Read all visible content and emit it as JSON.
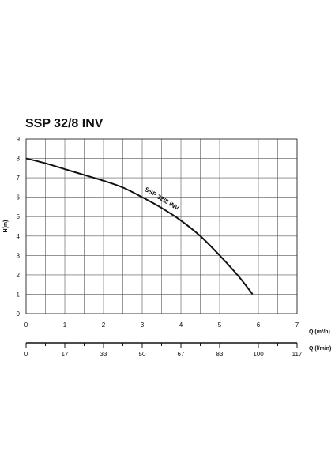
{
  "chart_data": {
    "type": "line",
    "title": "SSP 32/8 INV",
    "ylabel": "H(m)",
    "xlabel": "Q (m³/h)",
    "x2label": "Q (l/min)",
    "xlim": [
      0,
      7
    ],
    "ylim": [
      0,
      9
    ],
    "x_ticks": [
      "0",
      "1",
      "2",
      "3",
      "4",
      "5",
      "6",
      "7"
    ],
    "y_ticks": [
      "0",
      "1",
      "2",
      "3",
      "4",
      "5",
      "6",
      "7",
      "8",
      "9"
    ],
    "x2_ticks": [
      "0",
      "17",
      "33",
      "50",
      "67",
      "83",
      "100",
      "117"
    ],
    "grid": true,
    "series": [
      {
        "name": "SSP 32/8  INV",
        "x": [
          0,
          0.5,
          1,
          1.5,
          2,
          2.5,
          3,
          3.5,
          4,
          4.5,
          5,
          5.5,
          5.85
        ],
        "y": [
          8.0,
          7.75,
          7.45,
          7.15,
          6.85,
          6.5,
          6.0,
          5.45,
          4.8,
          4.0,
          3.0,
          1.9,
          1.0
        ]
      }
    ]
  }
}
